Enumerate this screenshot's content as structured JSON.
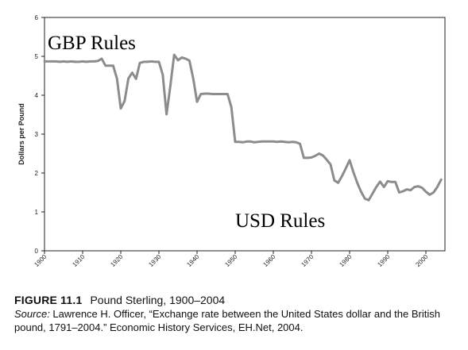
{
  "chart_data": {
    "type": "line",
    "ylabel": "Dollars per Pound",
    "xlabel": "",
    "ylim": [
      0,
      6
    ],
    "xlim": [
      1900,
      2005
    ],
    "yticks": [
      "0",
      "1",
      "2",
      "3",
      "4",
      "5",
      "6"
    ],
    "xticks": [
      "1900",
      "1910",
      "1920",
      "1930",
      "1940",
      "1950",
      "1960",
      "1970",
      "1980",
      "1990",
      "2000"
    ],
    "grid": false,
    "annotations": [
      "GBP Rules",
      "USD Rules"
    ],
    "series": [
      {
        "color": "#8c8c8c",
        "x": [
          1900,
          1901,
          1902,
          1903,
          1904,
          1905,
          1906,
          1907,
          1908,
          1909,
          1910,
          1911,
          1912,
          1913,
          1914,
          1915,
          1916,
          1917,
          1918,
          1919,
          1920,
          1921,
          1922,
          1923,
          1924,
          1925,
          1926,
          1927,
          1928,
          1929,
          1930,
          1931,
          1932,
          1933,
          1934,
          1935,
          1936,
          1937,
          1938,
          1939,
          1940,
          1941,
          1942,
          1943,
          1944,
          1945,
          1946,
          1947,
          1948,
          1949,
          1950,
          1951,
          1952,
          1953,
          1954,
          1955,
          1956,
          1957,
          1958,
          1959,
          1960,
          1961,
          1962,
          1963,
          1964,
          1965,
          1966,
          1967,
          1968,
          1969,
          1970,
          1971,
          1972,
          1973,
          1974,
          1975,
          1976,
          1977,
          1978,
          1979,
          1980,
          1981,
          1982,
          1983,
          1984,
          1985,
          1986,
          1987,
          1988,
          1989,
          1990,
          1991,
          1992,
          1993,
          1994,
          1995,
          1996,
          1997,
          1998,
          1999,
          2000,
          2001,
          2002,
          2003,
          2004
        ],
        "values": [
          4.87,
          4.87,
          4.87,
          4.87,
          4.86,
          4.87,
          4.86,
          4.87,
          4.86,
          4.86,
          4.87,
          4.86,
          4.87,
          4.87,
          4.88,
          4.94,
          4.76,
          4.76,
          4.76,
          4.43,
          3.66,
          3.85,
          4.43,
          4.58,
          4.42,
          4.83,
          4.86,
          4.86,
          4.87,
          4.86,
          4.86,
          4.53,
          3.51,
          4.24,
          5.04,
          4.9,
          4.97,
          4.94,
          4.89,
          4.43,
          3.83,
          4.03,
          4.04,
          4.04,
          4.03,
          4.03,
          4.03,
          4.03,
          4.03,
          3.69,
          2.8,
          2.8,
          2.79,
          2.81,
          2.81,
          2.79,
          2.8,
          2.81,
          2.81,
          2.81,
          2.81,
          2.8,
          2.81,
          2.8,
          2.79,
          2.8,
          2.79,
          2.75,
          2.39,
          2.39,
          2.4,
          2.44,
          2.5,
          2.45,
          2.34,
          2.22,
          1.81,
          1.75,
          1.92,
          2.12,
          2.33,
          2.02,
          1.75,
          1.52,
          1.34,
          1.3,
          1.47,
          1.64,
          1.78,
          1.64,
          1.79,
          1.77,
          1.77,
          1.5,
          1.53,
          1.58,
          1.56,
          1.64,
          1.66,
          1.62,
          1.52,
          1.44,
          1.5,
          1.64,
          1.83
        ]
      }
    ]
  },
  "caption": {
    "figure_label": "FIGURE 11.1",
    "figure_title": "Pound Sterling, 1900–2004",
    "source_label": "Source:",
    "source_text": " Lawrence H. Officer, “Exchange rate between the United States dollar and the British pound, 1791–2004.” Economic History Services, EH.Net, 2004."
  }
}
